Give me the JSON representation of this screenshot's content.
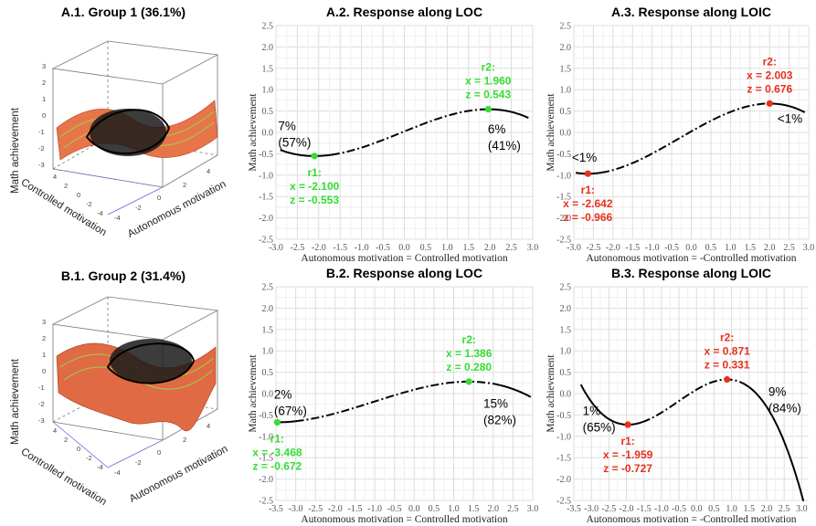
{
  "colors": {
    "green": "#33dd33",
    "red": "#e8301c",
    "curve": "#000000",
    "grid": "#e3e3e3"
  },
  "surface_panels": [
    {
      "title": "A.1. Group 1 (36.1%)",
      "z_label": "Math achievement",
      "x_label": "Controlled motivation",
      "y_label": "Autonomous motivation",
      "z_ticks": [
        "3",
        "2",
        "1",
        "0",
        "-1",
        "-2",
        "-3"
      ],
      "x_ticks": [
        "4",
        "2",
        "0",
        "-2",
        "-4"
      ],
      "y_ticks": [
        "-4",
        "-2",
        "0",
        "2",
        "4"
      ]
    },
    {
      "title": "B.1. Group 2 (31.4%)",
      "z_label": "Math achievement",
      "x_label": "Controlled motivation",
      "y_label": "Autonomous motivation",
      "z_ticks": [
        "3",
        "2",
        "1",
        "0",
        "-1",
        "-2",
        "-3"
      ],
      "x_ticks": [
        "4",
        "2",
        "0",
        "-2",
        "-4"
      ],
      "y_ticks": [
        "-4",
        "-2",
        "0",
        "2",
        "4"
      ]
    }
  ],
  "chart_data": [
    {
      "type": "line",
      "title": "A.2. Response along LOC",
      "xlabel": "Autonomous motivation = Controlled motivation",
      "ylabel": "Math achievement",
      "xlim": [
        -3,
        3
      ],
      "ylim": [
        -2.5,
        2.5
      ],
      "x_ticks": [
        -3.0,
        -2.5,
        -2.0,
        -1.5,
        -1.0,
        -0.5,
        0.0,
        0.5,
        1.0,
        1.5,
        2.0,
        2.5,
        3.0
      ],
      "x_tick_labels": [
        "-3.0",
        "-2.5",
        "-2.0",
        "-1.5",
        "-1.0",
        "-0.5",
        "0.0",
        "0.5",
        "1.0",
        "1.5",
        "2.0",
        "2.5",
        "3.0"
      ],
      "y_ticks": [
        -2.5,
        -2.0,
        -1.5,
        -1.0,
        -0.5,
        0.0,
        0.5,
        1.0,
        1.5,
        2.0,
        2.5
      ],
      "y_tick_labels": [
        "-2.5",
        "-2.0",
        "-1.5",
        "-1.0",
        "-0.5",
        "0.0",
        "0.5",
        "1.0",
        "1.5",
        "2.0",
        "2.5"
      ],
      "grid": true,
      "x_range": [
        -2.9,
        2.9
      ],
      "solid_ranges": [
        [
          -2.9,
          -1.7
        ],
        [
          2.05,
          2.9
        ]
      ],
      "points": [
        {
          "name": "r1",
          "x": -2.1,
          "z": -0.553,
          "color": "green",
          "labels": [
            "r1:",
            "x = -2.100",
            "z = -0.553"
          ],
          "position": "below"
        },
        {
          "name": "r2",
          "x": 1.96,
          "z": 0.543,
          "color": "green",
          "labels": [
            "r2:",
            "x = 1.960",
            "z = 0.543"
          ],
          "position": "above"
        }
      ],
      "annotations": [
        {
          "lines": [
            "7%",
            "(57%)"
          ],
          "x": -2.95,
          "y": 0.05
        },
        {
          "lines": [
            "6%",
            "(41%)"
          ],
          "x": 1.95,
          "y": -0.02
        }
      ]
    },
    {
      "type": "line",
      "title": "A.3. Response along LOIC",
      "xlabel": "Autonomous motivation = -Controlled motivation",
      "ylabel": "Math achievement",
      "xlim": [
        -3,
        3
      ],
      "ylim": [
        -2.5,
        2.5
      ],
      "x_ticks": [
        -3.0,
        -2.5,
        -2.0,
        -1.5,
        -1.0,
        -0.5,
        0.0,
        0.5,
        1.0,
        1.5,
        2.0,
        2.5,
        3.0
      ],
      "x_tick_labels": [
        "-3.0",
        "-2.5",
        "-2.0",
        "-1.5",
        "-1.0",
        "-0.5",
        "0.0",
        "0.5",
        "1.0",
        "1.5",
        "2.0",
        "2.5",
        "3.0"
      ],
      "y_ticks": [
        -2.5,
        -2.0,
        -1.5,
        -1.0,
        -0.5,
        0.0,
        0.5,
        1.0,
        1.5,
        2.0,
        2.5
      ],
      "y_tick_labels": [
        "-2.5",
        "-2.0",
        "-1.5",
        "-1.0",
        "-0.5",
        "0.0",
        "0.5",
        "1.0",
        "1.5",
        "2.0",
        "2.5"
      ],
      "grid": true,
      "x_range": [
        -2.95,
        2.9
      ],
      "solid_ranges": [
        [
          -2.95,
          -2.3
        ],
        [
          2.25,
          2.9
        ]
      ],
      "points": [
        {
          "name": "r1",
          "x": -2.642,
          "z": -0.966,
          "color": "red",
          "labels": [
            "r1:",
            "x = -2.642",
            "z = -0.966"
          ],
          "position": "below"
        },
        {
          "name": "r2",
          "x": 2.003,
          "z": 0.676,
          "color": "red",
          "labels": [
            "r2:",
            "x = 2.003",
            "z = 0.676"
          ],
          "position": "above"
        }
      ],
      "annotations": [
        {
          "lines": [
            "<1%"
          ],
          "x": -3.05,
          "y": -0.68
        },
        {
          "lines": [
            "<1%"
          ],
          "x": 2.2,
          "y": 0.22
        }
      ]
    },
    {
      "type": "line",
      "title": "B.2. Response along LOC",
      "xlabel": "Autonomous motivation = Controlled motivation",
      "ylabel": "Math achievement",
      "xlim": [
        -3.5,
        3
      ],
      "ylim": [
        -2.5,
        2.5
      ],
      "x_ticks": [
        -3.5,
        -3.0,
        -2.5,
        -2.0,
        -1.5,
        -1.0,
        -0.5,
        0.0,
        0.5,
        1.0,
        1.5,
        2.0,
        2.5,
        3.0
      ],
      "x_tick_labels": [
        "-3.5",
        "-3.0",
        "-2.5",
        "-2.0",
        "-1.5",
        "-1.0",
        "-0.5",
        "0.0",
        "0.5",
        "1.0",
        "1.5",
        "2.0",
        "2.5",
        "3.0"
      ],
      "y_ticks": [
        -2.5,
        -2.0,
        -1.5,
        -1.0,
        -0.5,
        0.0,
        0.5,
        1.0,
        1.5,
        2.0,
        2.5
      ],
      "y_tick_labels": [
        "-2.5",
        "-2.0",
        "-1.5",
        "-1.0",
        "-0.5",
        "0.0",
        "0.5",
        "1.0",
        "1.5",
        "2.0",
        "2.5"
      ],
      "grid": true,
      "x_range": [
        -3.468,
        2.95
      ],
      "solid_ranges": [
        [
          -3.468,
          -3.0
        ],
        [
          2.15,
          2.95
        ]
      ],
      "points": [
        {
          "name": "r1",
          "x": -3.468,
          "z": -0.672,
          "color": "green",
          "labels": [
            "r1:",
            "x = -3.468",
            "z = -0.672"
          ],
          "position": "below"
        },
        {
          "name": "r2",
          "x": 1.386,
          "z": 0.28,
          "color": "green",
          "labels": [
            "r2:",
            "x = 1.386",
            "z = 0.280"
          ],
          "position": "above"
        }
      ],
      "annotations": [
        {
          "lines": [
            "2%",
            "(67%)"
          ],
          "x": -3.55,
          "y": -0.12
        },
        {
          "lines": [
            "15%",
            "(82%)"
          ],
          "x": 1.75,
          "y": -0.33
        }
      ]
    },
    {
      "type": "line",
      "title": "B.3. Response along LOIC",
      "xlabel": "Autonomous motivation = -Controlled motivation",
      "ylabel": "Math achievement",
      "xlim": [
        -3.5,
        3.2
      ],
      "ylim": [
        -2.5,
        2.5
      ],
      "x_ticks": [
        -3.5,
        -3.0,
        -2.5,
        -2.0,
        -1.5,
        -1.0,
        -0.5,
        0.0,
        0.5,
        1.0,
        1.5,
        2.0,
        2.5,
        3.0
      ],
      "x_tick_labels": [
        "-3.5",
        "-3.0",
        "-2.5",
        "-2.0",
        "-1.5",
        "-1.0",
        "-0.5",
        "0.0",
        "0.5",
        "1.0",
        "1.5",
        "2.0",
        "2.5",
        "3.0"
      ],
      "y_ticks": [
        -2.5,
        -2.0,
        -1.5,
        -1.0,
        -0.5,
        0.0,
        0.5,
        1.0,
        1.5,
        2.0,
        2.5
      ],
      "y_tick_labels": [
        "-2.5",
        "-2.0",
        "-1.5",
        "-1.0",
        "-0.5",
        "0.0",
        "0.5",
        "1.0",
        "1.5",
        "2.0",
        "2.5"
      ],
      "grid": true,
      "x_range": [
        -3.3,
        3.05
      ],
      "solid_ranges": [
        [
          -3.3,
          -1.55
        ],
        [
          1.3,
          3.05
        ]
      ],
      "points": [
        {
          "name": "r1",
          "x": -1.959,
          "z": -0.727,
          "color": "red",
          "labels": [
            "r1:",
            "x = -1.959",
            "z = -0.727"
          ],
          "position": "below"
        },
        {
          "name": "r2",
          "x": 0.871,
          "z": 0.331,
          "color": "red",
          "labels": [
            "r2:",
            "x = 0.871",
            "z = 0.331"
          ],
          "position": "above"
        }
      ],
      "annotations": [
        {
          "lines": [
            "1%",
            "(65%)"
          ],
          "x": -3.25,
          "y": -0.5
        },
        {
          "lines": [
            "9%",
            "(84%)"
          ],
          "x": 2.05,
          "y": -0.05
        }
      ]
    }
  ]
}
